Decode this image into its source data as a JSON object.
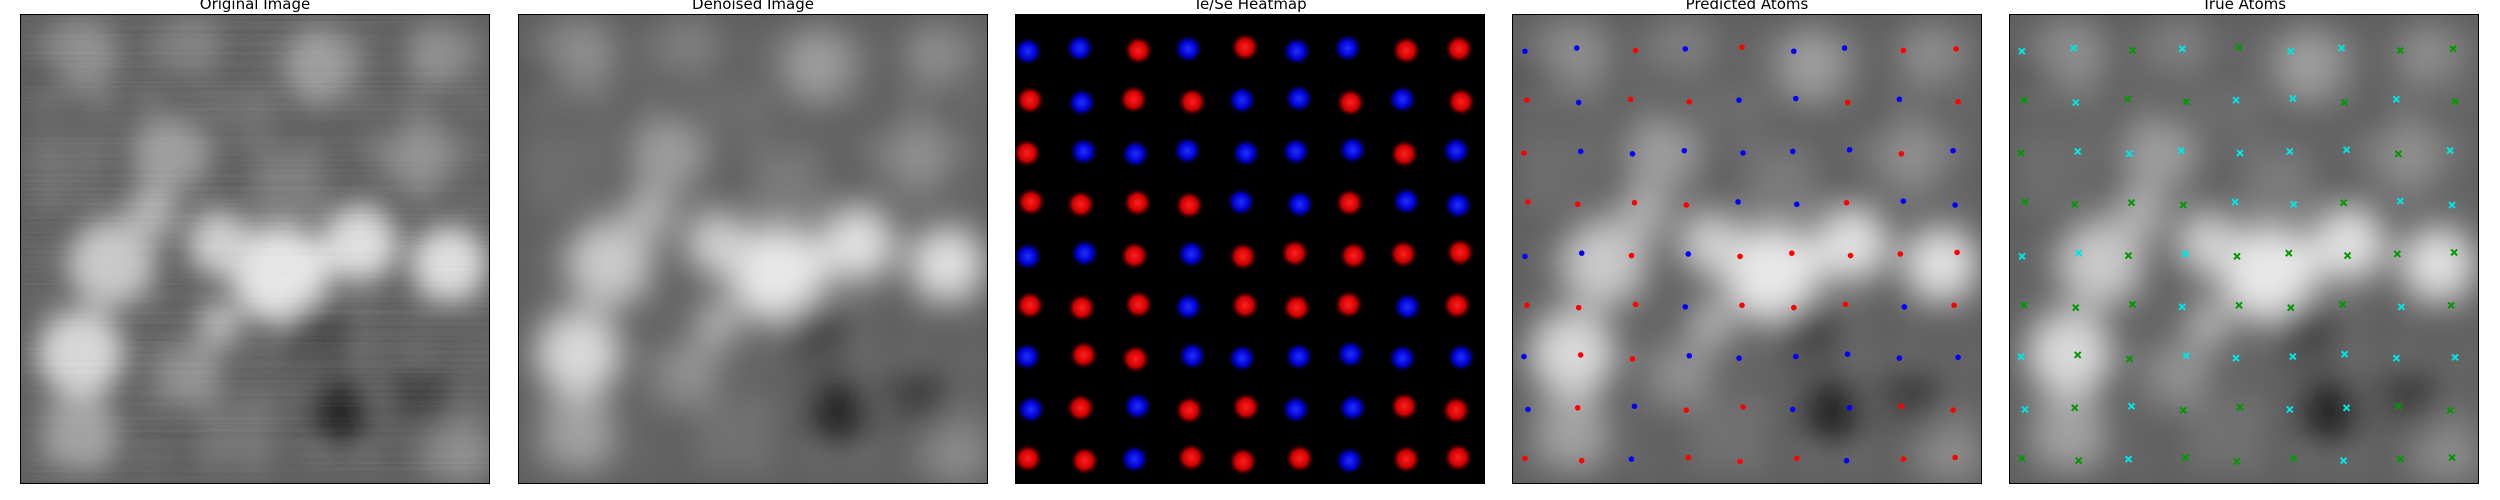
{
  "panels": [
    {
      "id": "original",
      "title": "Original Image"
    },
    {
      "id": "denoised",
      "title": "Denoised Image"
    },
    {
      "id": "heatmap",
      "title": "Te/Se Heatmap"
    },
    {
      "id": "predicted",
      "title": "Predicted Atoms"
    },
    {
      "id": "true",
      "title": "True Atoms"
    }
  ],
  "colors": {
    "te_red": "#ff0000",
    "se_blue": "#0000ff",
    "true_cyan": "#00e5e5",
    "true_green": "#009900",
    "heat_bg": "#000000"
  },
  "lattice": {
    "columns": 9,
    "rows": 9,
    "heatmap_sites": [
      [
        "B",
        "B",
        "R",
        "B",
        "R",
        "B",
        "B",
        "R",
        "R"
      ],
      [
        "R",
        "B",
        "R",
        "R",
        "B",
        "B",
        "R",
        "B",
        "R"
      ],
      [
        "R",
        "B",
        "B",
        "B",
        "B",
        "B",
        "B",
        "R",
        "B"
      ],
      [
        "R",
        "R",
        "R",
        "R",
        "B",
        "B",
        "R",
        "B",
        "B"
      ],
      [
        "B",
        "B",
        "R",
        "B",
        "R",
        "R",
        "R",
        "R",
        "R"
      ],
      [
        "R",
        "R",
        "R",
        "B",
        "R",
        "R",
        "R",
        "B",
        "R"
      ],
      [
        "B",
        "R",
        "R",
        "B",
        "B",
        "B",
        "B",
        "B",
        "B"
      ],
      [
        "B",
        "R",
        "B",
        "R",
        "R",
        "B",
        "B",
        "R",
        "R"
      ],
      [
        "R",
        "R",
        "B",
        "R",
        "R",
        "R",
        "B",
        "R",
        "R"
      ]
    ],
    "true_sites": [
      [
        "C",
        "C",
        "G",
        "C",
        "G",
        "C",
        "C",
        "G",
        "G"
      ],
      [
        "G",
        "C",
        "G",
        "G",
        "C",
        "C",
        "G",
        "C",
        "G"
      ],
      [
        "G",
        "C",
        "C",
        "C",
        "C",
        "C",
        "C",
        "G",
        "C"
      ],
      [
        "G",
        "G",
        "G",
        "G",
        "C",
        "C",
        "G",
        "C",
        "C"
      ],
      [
        "C",
        "C",
        "G",
        "C",
        "G",
        "G",
        "G",
        "G",
        "G"
      ],
      [
        "G",
        "G",
        "G",
        "C",
        "G",
        "G",
        "G",
        "C",
        "G"
      ],
      [
        "C",
        "G",
        "G",
        "C",
        "C",
        "C",
        "C",
        "C",
        "C"
      ],
      [
        "C",
        "G",
        "C",
        "G",
        "G",
        "C",
        "C",
        "G",
        "G"
      ],
      [
        "G",
        "G",
        "C",
        "G",
        "G",
        "G",
        "C",
        "G",
        "G"
      ]
    ]
  }
}
